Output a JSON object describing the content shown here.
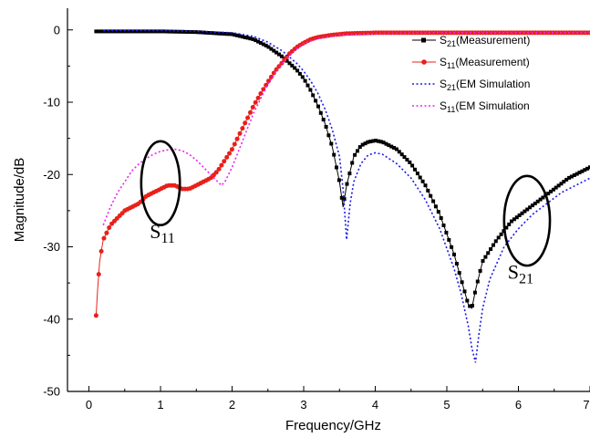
{
  "chart_data": {
    "type": "line",
    "xlabel": "Frequency/GHz",
    "ylabel": "Magnitude/dB",
    "xlim": [
      -0.3,
      7.0
    ],
    "ylim": [
      -50,
      3
    ],
    "xticks": [
      0,
      1,
      2,
      3,
      4,
      5,
      6,
      7
    ],
    "yticks": [
      0,
      -10,
      -20,
      -30,
      -40,
      -50
    ],
    "grid": false,
    "legend_position": "top-right",
    "series": [
      {
        "name": "S21(Measurement)",
        "label_main": "S",
        "label_sub": "21",
        "label_rest": "(Measurement)",
        "color": "#000000",
        "style": "solid-markers",
        "x": [
          0.1,
          0.5,
          1.0,
          1.5,
          2.0,
          2.3,
          2.5,
          2.7,
          2.9,
          3.0,
          3.1,
          3.2,
          3.3,
          3.4,
          3.5,
          3.55,
          3.6,
          3.7,
          3.8,
          3.9,
          4.0,
          4.1,
          4.3,
          4.5,
          4.7,
          4.9,
          5.1,
          5.2,
          5.3,
          5.35,
          5.4,
          5.5,
          5.7,
          5.9,
          6.1,
          6.3,
          6.5,
          6.7,
          7.0
        ],
        "y": [
          -0.2,
          -0.2,
          -0.2,
          -0.3,
          -0.6,
          -1.3,
          -2.3,
          -3.7,
          -5.5,
          -6.7,
          -8.4,
          -10.5,
          -13.0,
          -16.2,
          -21.0,
          -24.5,
          -21.5,
          -17.5,
          -16.0,
          -15.5,
          -15.3,
          -15.5,
          -16.5,
          -18.5,
          -21.5,
          -25.5,
          -31.0,
          -34.5,
          -38.0,
          -38.5,
          -36.0,
          -32.0,
          -29.0,
          -26.5,
          -25.0,
          -23.5,
          -22.0,
          -20.5,
          -19.0
        ]
      },
      {
        "name": "S11(Measurement)",
        "label_main": "S",
        "label_sub": "11",
        "label_rest": "(Measurement)",
        "color": "#e8201a",
        "style": "solid-markers",
        "x": [
          0.1,
          0.12,
          0.15,
          0.2,
          0.25,
          0.3,
          0.4,
          0.5,
          0.6,
          0.7,
          0.8,
          0.9,
          1.0,
          1.1,
          1.2,
          1.3,
          1.4,
          1.5,
          1.6,
          1.7,
          1.8,
          1.9,
          2.0,
          2.1,
          2.2,
          2.3,
          2.4,
          2.5,
          2.6,
          2.7,
          2.8,
          2.9,
          3.0,
          3.1,
          3.2,
          3.4,
          3.6,
          4.0,
          4.5,
          5.0,
          5.5,
          6.0,
          6.5,
          7.0
        ],
        "y": [
          -39.5,
          -36.0,
          -32.0,
          -29.0,
          -28.0,
          -27.0,
          -26.0,
          -25.0,
          -24.5,
          -24.0,
          -23.0,
          -22.5,
          -22.0,
          -21.5,
          -21.5,
          -22.0,
          -22.0,
          -21.5,
          -21.0,
          -20.5,
          -19.5,
          -18.0,
          -16.5,
          -14.5,
          -12.5,
          -10.5,
          -8.8,
          -7.2,
          -5.7,
          -4.5,
          -3.3,
          -2.4,
          -1.8,
          -1.3,
          -1.0,
          -0.7,
          -0.5,
          -0.4,
          -0.4,
          -0.4,
          -0.4,
          -0.4,
          -0.4,
          -0.4
        ]
      },
      {
        "name": "S21(EM Simulation",
        "label_main": "S",
        "label_sub": "21",
        "label_rest": "(EM Simulation",
        "color": "#1a1aee",
        "style": "dotted",
        "x": [
          0.2,
          0.5,
          1.0,
          1.5,
          2.0,
          2.3,
          2.5,
          2.7,
          2.9,
          3.0,
          3.1,
          3.2,
          3.3,
          3.4,
          3.5,
          3.55,
          3.6,
          3.65,
          3.7,
          3.8,
          3.9,
          4.0,
          4.1,
          4.3,
          4.5,
          4.7,
          4.9,
          5.1,
          5.2,
          5.3,
          5.35,
          5.4,
          5.45,
          5.5,
          5.6,
          5.8,
          6.0,
          6.2,
          6.4,
          6.6,
          6.8,
          7.0
        ],
        "y": [
          -0.1,
          -0.1,
          -0.1,
          -0.2,
          -0.4,
          -0.9,
          -1.7,
          -2.9,
          -4.6,
          -5.7,
          -7.1,
          -8.8,
          -11.0,
          -13.8,
          -17.5,
          -22.0,
          -29.0,
          -24.0,
          -21.0,
          -18.5,
          -17.3,
          -17.0,
          -17.2,
          -18.5,
          -20.5,
          -23.5,
          -27.5,
          -33.0,
          -36.5,
          -41.0,
          -44.0,
          -46.0,
          -42.0,
          -38.5,
          -34.5,
          -30.0,
          -27.5,
          -25.5,
          -24.0,
          -22.5,
          -21.5,
          -20.5
        ]
      },
      {
        "name": "S11(EM Simulation",
        "label_main": "S",
        "label_sub": "11",
        "label_rest": "(EM Simulation",
        "color": "#ee22ee",
        "style": "dotted",
        "x": [
          0.2,
          0.3,
          0.4,
          0.5,
          0.6,
          0.7,
          0.8,
          0.9,
          1.0,
          1.1,
          1.2,
          1.3,
          1.4,
          1.5,
          1.6,
          1.7,
          1.8,
          1.85,
          1.9,
          2.0,
          2.1,
          2.2,
          2.3,
          2.4,
          2.5,
          2.6,
          2.7,
          2.8,
          2.9,
          3.0,
          3.2,
          3.5,
          4.0,
          5.0,
          6.0,
          7.0
        ],
        "y": [
          -27.0,
          -24.5,
          -22.5,
          -21.0,
          -19.5,
          -18.5,
          -17.8,
          -17.2,
          -16.8,
          -16.6,
          -16.5,
          -16.7,
          -17.2,
          -18.0,
          -19.0,
          -20.0,
          -21.0,
          -21.5,
          -21.0,
          -19.0,
          -16.5,
          -14.0,
          -11.5,
          -9.5,
          -7.5,
          -6.0,
          -4.6,
          -3.5,
          -2.6,
          -1.9,
          -1.2,
          -0.7,
          -0.5,
          -0.4,
          -0.4,
          -0.4
        ]
      }
    ],
    "annotations": [
      {
        "main": "S",
        "sub": "11",
        "ellipse_center": [
          1.0,
          -21.2
        ],
        "ellipse_rx": 0.27,
        "ellipse_ry": 5.8,
        "label_at": [
          0.85,
          -28.8
        ]
      },
      {
        "main": "S",
        "sub": "21",
        "ellipse_center": [
          6.12,
          -26.4
        ],
        "ellipse_rx": 0.32,
        "ellipse_ry": 6.2,
        "label_at": [
          5.85,
          -34.4
        ]
      }
    ]
  }
}
